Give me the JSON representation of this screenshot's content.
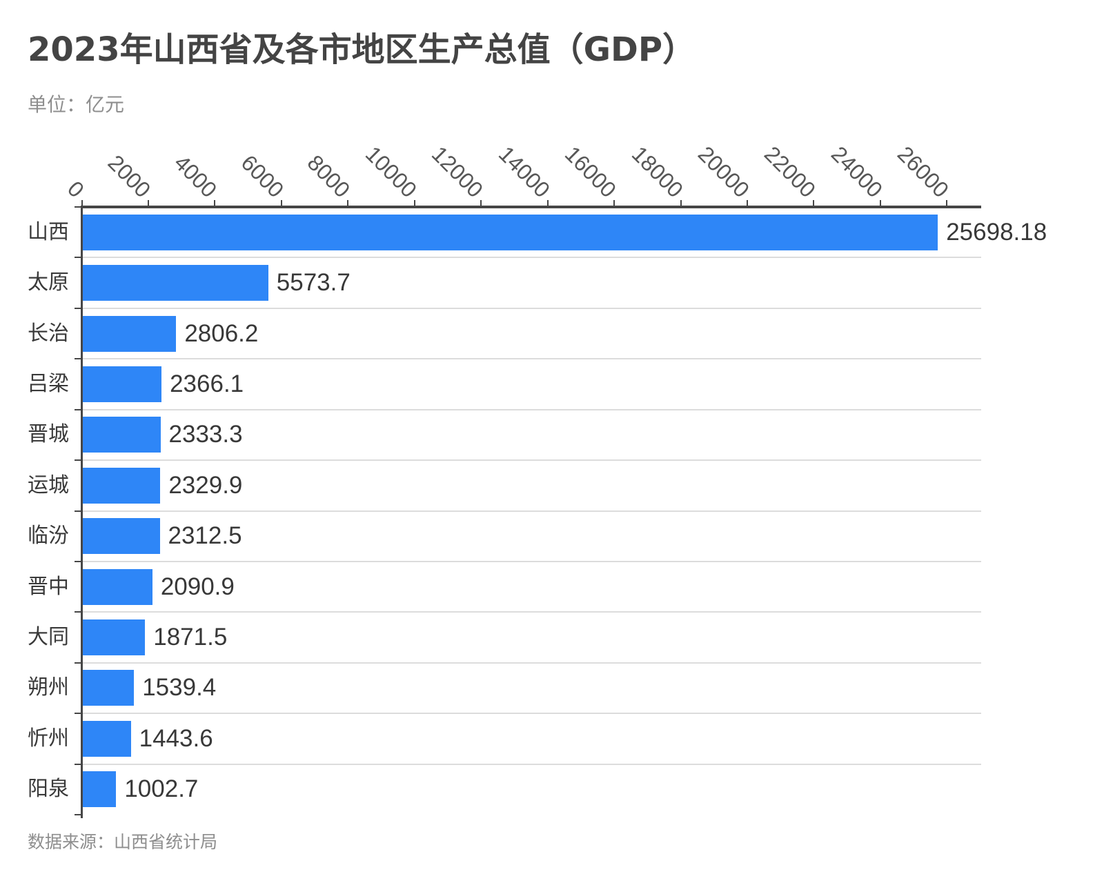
{
  "title": "2023年山西省及各市地区生产总值（GDP）",
  "unit_label": "单位：亿元",
  "source": "数据来源：山西省统计局",
  "colors": {
    "bar": "#2e86f7",
    "axis": "#464646",
    "grid": "#dcdcdc",
    "title_text": "#444444",
    "muted_text": "#8e8e8e"
  },
  "chart_data": {
    "type": "bar",
    "orientation": "horizontal",
    "title": "2023年山西省及各市地区生产总值（GDP）",
    "unit": "亿元",
    "categories": [
      "山西",
      "太原",
      "长治",
      "吕梁",
      "晋城",
      "运城",
      "临汾",
      "晋中",
      "大同",
      "朔州",
      "忻州",
      "阳泉"
    ],
    "values": [
      25698.18,
      5573.7,
      2806.2,
      2366.1,
      2333.3,
      2329.9,
      2312.5,
      2090.9,
      1871.5,
      1539.4,
      1443.6,
      1002.7
    ],
    "value_labels": [
      "25698.18",
      "5573.7",
      "2806.2",
      "2366.1",
      "2333.3",
      "2329.9",
      "2312.5",
      "2090.9",
      "1871.5",
      "1539.4",
      "1443.6",
      "1002.7"
    ],
    "x_ticks": [
      0,
      2000,
      4000,
      6000,
      8000,
      10000,
      12000,
      14000,
      16000,
      18000,
      20000,
      22000,
      24000,
      26000
    ],
    "x_max": 27000,
    "grid": true,
    "source": "数据来源：山西省统计局"
  }
}
